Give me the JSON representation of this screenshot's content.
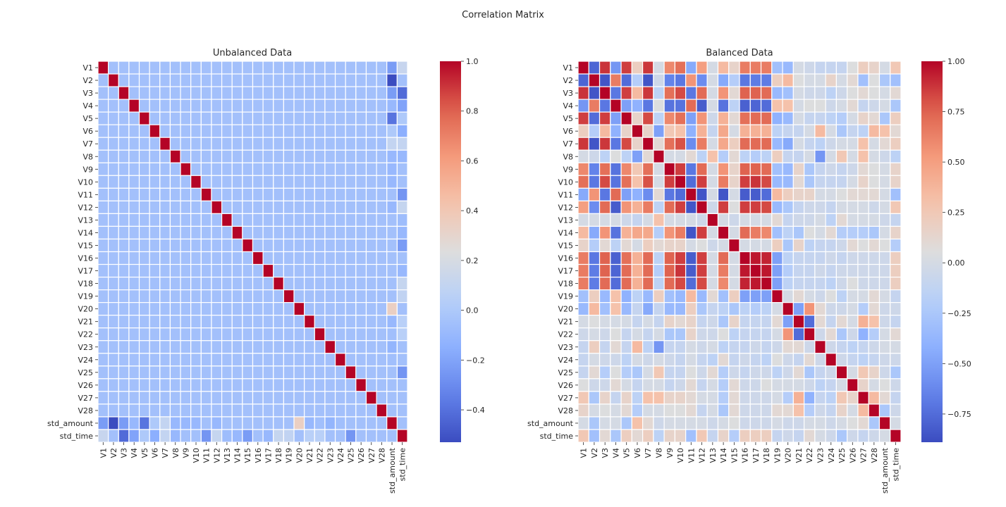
{
  "suptitle": "Correlation Matrix",
  "chart_data": [
    {
      "type": "heatmap",
      "title": "Unbalanced Data",
      "colormap": "coolwarm",
      "vmin": -0.53,
      "vmax": 1.0,
      "colorbar_ticks": [
        -0.4,
        -0.2,
        0.0,
        0.2,
        0.4,
        0.6,
        0.8,
        1.0
      ],
      "colorbar_tick_labels": [
        "−0.4",
        "−0.2",
        "0.0",
        "0.2",
        "0.4",
        "0.6",
        "0.8",
        "1.0"
      ],
      "labels": [
        "V1",
        "V2",
        "V3",
        "V4",
        "V5",
        "V6",
        "V7",
        "V8",
        "V9",
        "V10",
        "V11",
        "V12",
        "V13",
        "V14",
        "V15",
        "V16",
        "V17",
        "V18",
        "V19",
        "V20",
        "V21",
        "V22",
        "V23",
        "V24",
        "V25",
        "V26",
        "V27",
        "V28",
        "std_amount",
        "std_time"
      ],
      "base_value": -0.05,
      "diagonal_value": 1.0,
      "last_two": {
        "std_amount": [
          -0.23,
          -0.53,
          -0.23,
          -0.1,
          -0.39,
          0.0,
          0.1,
          -0.1,
          -0.1,
          -0.1,
          -0.05,
          -0.1,
          -0.05,
          -0.05,
          -0.05,
          -0.05,
          -0.05,
          -0.05,
          -0.05,
          0.34,
          -0.1,
          -0.06,
          -0.12,
          -0.06,
          -0.05,
          -0.05,
          -0.05,
          -0.05,
          1.0,
          -0.05
        ],
        "std_time": [
          0.12,
          -0.05,
          -0.42,
          -0.2,
          0.0,
          -0.15,
          0.1,
          -0.1,
          -0.05,
          -0.05,
          -0.26,
          0.11,
          -0.07,
          -0.1,
          -0.23,
          -0.05,
          -0.1,
          0.11,
          0.09,
          -0.05,
          0.05,
          0.05,
          -0.05,
          -0.05,
          -0.26,
          -0.05,
          -0.05,
          -0.05,
          -0.05,
          1.0
        ]
      }
    },
    {
      "type": "heatmap",
      "title": "Balanced Data",
      "colormap": "coolwarm",
      "vmin": -0.89,
      "vmax": 1.0,
      "colorbar_ticks": [
        -0.75,
        -0.5,
        -0.25,
        0.0,
        0.25,
        0.5,
        0.75,
        1.0
      ],
      "colorbar_tick_labels": [
        "−0.75",
        "−0.50",
        "−0.25",
        "0.00",
        "0.25",
        "0.50",
        "0.75",
        "1.00"
      ],
      "labels": [
        "V1",
        "V2",
        "V3",
        "V4",
        "V5",
        "V6",
        "V7",
        "V8",
        "V9",
        "V10",
        "V11",
        "V12",
        "V13",
        "V14",
        "V15",
        "V16",
        "V17",
        "V18",
        "V19",
        "V20",
        "V21",
        "V22",
        "V23",
        "V24",
        "V25",
        "V26",
        "V27",
        "V28",
        "std_amount",
        "std_time"
      ],
      "values": [
        [
          1.0,
          -0.78,
          0.88,
          -0.55,
          0.85,
          0.2,
          0.87,
          0.0,
          0.6,
          0.7,
          -0.45,
          0.5,
          0.0,
          0.35,
          0.15,
          0.65,
          0.65,
          0.65,
          -0.3,
          -0.35,
          0.0,
          -0.05,
          -0.1,
          -0.1,
          -0.1,
          0.05,
          0.2,
          0.15,
          0.0,
          0.25
        ],
        [
          -0.78,
          1.0,
          -0.85,
          0.65,
          -0.75,
          -0.2,
          -0.85,
          -0.05,
          -0.65,
          -0.7,
          0.55,
          -0.6,
          0.0,
          -0.45,
          -0.2,
          -0.7,
          -0.68,
          -0.68,
          0.2,
          0.35,
          0.05,
          0.0,
          0.0,
          0.15,
          0.0,
          0.1,
          -0.3,
          0.05,
          -0.25,
          -0.3
        ],
        [
          0.88,
          -0.85,
          1.0,
          -0.7,
          0.85,
          0.35,
          0.87,
          -0.15,
          0.7,
          0.82,
          -0.7,
          0.72,
          0.0,
          0.55,
          0.1,
          0.75,
          0.75,
          0.72,
          -0.35,
          -0.3,
          0.0,
          -0.05,
          -0.05,
          -0.15,
          -0.05,
          0.05,
          0.1,
          0.05,
          0.0,
          0.1
        ],
        [
          -0.55,
          0.65,
          -0.7,
          1.0,
          -0.5,
          -0.4,
          -0.7,
          0.05,
          -0.72,
          -0.72,
          0.72,
          -0.82,
          0.0,
          -0.72,
          -0.15,
          -0.8,
          -0.78,
          -0.75,
          0.3,
          0.3,
          0.0,
          0.05,
          0.05,
          -0.05,
          0.0,
          0.1,
          -0.1,
          -0.05,
          0.0,
          -0.25
        ],
        [
          0.85,
          -0.75,
          0.85,
          -0.5,
          1.0,
          0.15,
          0.82,
          -0.15,
          0.6,
          0.7,
          -0.5,
          0.55,
          -0.05,
          0.4,
          0.1,
          0.7,
          0.72,
          0.72,
          -0.4,
          -0.35,
          0.0,
          -0.1,
          -0.1,
          -0.15,
          -0.2,
          0.0,
          0.15,
          0.1,
          -0.25,
          0.2
        ],
        [
          0.2,
          -0.2,
          0.35,
          -0.4,
          0.15,
          1.0,
          0.15,
          -0.5,
          0.25,
          0.3,
          -0.4,
          0.4,
          -0.1,
          0.45,
          0.0,
          0.4,
          0.4,
          0.4,
          -0.15,
          -0.1,
          -0.1,
          0.0,
          0.35,
          0.0,
          -0.25,
          -0.1,
          -0.15,
          0.35,
          0.3,
          0.1
        ],
        [
          0.87,
          -0.85,
          0.87,
          -0.7,
          0.82,
          0.15,
          1.0,
          0.1,
          0.7,
          0.8,
          -0.6,
          0.65,
          0.0,
          0.45,
          0.2,
          0.72,
          0.72,
          0.72,
          -0.35,
          -0.45,
          0.0,
          -0.1,
          -0.15,
          -0.05,
          0.0,
          0.0,
          0.3,
          0.0,
          0.1,
          0.2
        ],
        [
          0.0,
          -0.05,
          -0.15,
          0.05,
          -0.15,
          -0.5,
          0.1,
          1.0,
          0.0,
          0.0,
          0.1,
          -0.15,
          0.3,
          -0.2,
          0.1,
          -0.15,
          -0.2,
          -0.15,
          0.2,
          -0.1,
          -0.1,
          0.0,
          -0.55,
          0.0,
          0.25,
          0.0,
          0.3,
          0.0,
          -0.05,
          -0.15
        ],
        [
          0.6,
          -0.65,
          0.7,
          -0.72,
          0.6,
          0.25,
          0.7,
          0.0,
          1.0,
          0.85,
          -0.7,
          0.72,
          0.0,
          0.55,
          0.15,
          0.75,
          0.75,
          0.72,
          -0.3,
          -0.35,
          0.15,
          -0.25,
          -0.1,
          -0.05,
          -0.1,
          -0.05,
          0.1,
          0.05,
          0.0,
          0.15
        ],
        [
          0.7,
          -0.7,
          0.82,
          -0.72,
          0.7,
          0.3,
          0.8,
          0.0,
          0.85,
          1.0,
          -0.75,
          0.85,
          0.0,
          0.65,
          0.15,
          0.85,
          0.88,
          0.82,
          -0.35,
          -0.35,
          0.1,
          -0.25,
          -0.1,
          -0.1,
          -0.1,
          0.0,
          0.15,
          0.05,
          0.0,
          0.15
        ],
        [
          -0.45,
          0.55,
          -0.7,
          0.72,
          -0.5,
          -0.4,
          -0.6,
          0.1,
          -0.7,
          -0.75,
          1.0,
          -0.85,
          0.0,
          -0.85,
          0.0,
          -0.82,
          -0.82,
          -0.75,
          0.35,
          0.2,
          0.15,
          0.15,
          0.0,
          0.0,
          0.05,
          0.1,
          0.1,
          0.1,
          0.0,
          -0.3
        ],
        [
          0.5,
          -0.6,
          0.72,
          -0.82,
          0.55,
          0.4,
          0.65,
          -0.15,
          0.72,
          0.85,
          -0.85,
          1.0,
          -0.05,
          0.85,
          0.05,
          0.85,
          0.85,
          0.82,
          -0.35,
          -0.25,
          -0.1,
          -0.05,
          -0.05,
          -0.1,
          0.0,
          0.0,
          0.0,
          -0.05,
          0.0,
          0.25
        ],
        [
          0.0,
          0.0,
          0.0,
          0.0,
          -0.05,
          -0.1,
          0.0,
          0.3,
          0.0,
          0.0,
          0.0,
          -0.05,
          1.0,
          0.0,
          -0.05,
          0.0,
          0.0,
          0.0,
          0.1,
          -0.1,
          -0.05,
          -0.05,
          0.0,
          -0.15,
          0.1,
          0.0,
          0.0,
          0.0,
          -0.05,
          -0.1
        ],
        [
          0.35,
          -0.45,
          0.55,
          -0.72,
          0.4,
          0.45,
          0.45,
          -0.2,
          0.55,
          0.65,
          -0.85,
          0.85,
          0.0,
          1.0,
          0.0,
          0.72,
          0.65,
          0.6,
          -0.3,
          -0.15,
          -0.25,
          0.05,
          0.0,
          0.1,
          -0.2,
          -0.2,
          -0.2,
          -0.25,
          0.0,
          0.15
        ],
        [
          0.15,
          -0.2,
          0.1,
          -0.15,
          0.1,
          0.0,
          0.2,
          0.1,
          0.15,
          0.15,
          0.0,
          0.05,
          -0.05,
          0.0,
          1.0,
          0.0,
          0.0,
          0.0,
          0.2,
          -0.25,
          0.15,
          -0.15,
          -0.1,
          -0.1,
          -0.05,
          0.1,
          0.05,
          0.1,
          0.05,
          -0.2
        ],
        [
          0.65,
          -0.7,
          0.75,
          -0.8,
          0.7,
          0.4,
          0.72,
          -0.15,
          0.75,
          0.85,
          -0.82,
          0.85,
          0.0,
          0.72,
          0.0,
          1.0,
          0.95,
          0.92,
          -0.5,
          -0.15,
          -0.1,
          -0.1,
          -0.1,
          -0.05,
          -0.1,
          -0.05,
          -0.05,
          -0.05,
          -0.05,
          0.2
        ],
        [
          0.65,
          -0.68,
          0.75,
          -0.78,
          0.72,
          0.4,
          0.72,
          -0.2,
          0.75,
          0.88,
          -0.82,
          0.85,
          0.0,
          0.65,
          0.0,
          0.95,
          1.0,
          0.95,
          -0.5,
          -0.2,
          -0.1,
          -0.1,
          -0.05,
          -0.1,
          -0.05,
          -0.05,
          -0.05,
          -0.05,
          -0.05,
          0.2
        ],
        [
          0.65,
          -0.68,
          0.72,
          -0.75,
          0.72,
          0.4,
          0.72,
          -0.15,
          0.72,
          0.82,
          -0.75,
          0.82,
          0.0,
          0.6,
          0.0,
          0.92,
          0.95,
          1.0,
          -0.5,
          -0.15,
          -0.1,
          -0.1,
          -0.1,
          -0.15,
          -0.05,
          0.05,
          -0.05,
          -0.05,
          -0.05,
          0.2
        ],
        [
          -0.3,
          0.2,
          -0.35,
          0.3,
          -0.4,
          -0.15,
          -0.35,
          0.2,
          -0.3,
          -0.35,
          0.35,
          -0.35,
          0.1,
          -0.3,
          0.2,
          -0.5,
          -0.5,
          -0.5,
          1.0,
          0.0,
          0.1,
          0.0,
          -0.05,
          0.05,
          -0.15,
          0.0,
          0.0,
          0.1,
          0.0,
          -0.1
        ],
        [
          -0.35,
          0.35,
          -0.3,
          0.3,
          -0.35,
          -0.1,
          -0.45,
          -0.1,
          -0.35,
          -0.35,
          0.2,
          -0.25,
          -0.1,
          -0.15,
          -0.25,
          -0.15,
          -0.2,
          -0.15,
          0.0,
          1.0,
          -0.5,
          0.55,
          0.1,
          -0.05,
          -0.05,
          0.0,
          -0.2,
          0.1,
          -0.05,
          -0.05
        ],
        [
          0.0,
          0.05,
          0.0,
          0.0,
          0.0,
          -0.1,
          0.0,
          -0.1,
          0.15,
          0.1,
          0.15,
          -0.1,
          -0.05,
          -0.25,
          0.15,
          -0.1,
          -0.1,
          -0.1,
          0.1,
          -0.5,
          1.0,
          -0.75,
          0.1,
          -0.1,
          0.1,
          0.0,
          0.4,
          0.3,
          -0.05,
          -0.1
        ],
        [
          -0.05,
          0.0,
          -0.05,
          0.05,
          -0.1,
          0.0,
          -0.1,
          0.0,
          -0.25,
          -0.25,
          0.15,
          -0.05,
          -0.05,
          0.05,
          -0.15,
          -0.1,
          -0.1,
          -0.1,
          0.0,
          0.55,
          -0.75,
          1.0,
          -0.05,
          0.1,
          -0.25,
          -0.05,
          -0.4,
          -0.2,
          0.0,
          0.1
        ],
        [
          -0.1,
          0.2,
          -0.1,
          0.1,
          -0.1,
          0.35,
          -0.15,
          -0.55,
          -0.1,
          -0.1,
          0.0,
          -0.05,
          0.0,
          -0.15,
          -0.1,
          -0.1,
          -0.05,
          -0.1,
          -0.05,
          0.1,
          0.1,
          -0.05,
          1.0,
          -0.05,
          -0.1,
          -0.15,
          -0.1,
          -0.05,
          0.0,
          0.0
        ],
        [
          -0.1,
          0.0,
          -0.05,
          -0.05,
          -0.15,
          0.0,
          -0.05,
          0.0,
          -0.05,
          -0.1,
          0.0,
          -0.1,
          -0.15,
          0.1,
          -0.1,
          -0.05,
          -0.1,
          -0.15,
          0.05,
          -0.05,
          -0.1,
          0.1,
          -0.05,
          1.0,
          -0.05,
          -0.1,
          -0.15,
          -0.1,
          -0.05,
          -0.05
        ],
        [
          -0.1,
          0.1,
          -0.2,
          0.05,
          -0.2,
          -0.25,
          0.0,
          0.25,
          -0.1,
          -0.1,
          0.05,
          -0.05,
          0.1,
          -0.2,
          -0.05,
          -0.1,
          -0.05,
          -0.05,
          -0.15,
          -0.05,
          0.1,
          -0.25,
          -0.1,
          -0.05,
          1.0,
          0.0,
          0.25,
          0.15,
          -0.05,
          -0.25
        ],
        [
          0.05,
          -0.05,
          -0.05,
          0.1,
          0.0,
          -0.1,
          0.0,
          0.0,
          -0.1,
          -0.05,
          0.1,
          -0.1,
          0.0,
          -0.2,
          0.1,
          -0.05,
          -0.05,
          0.05,
          0.0,
          0.0,
          0.0,
          -0.05,
          -0.15,
          -0.1,
          0.0,
          1.0,
          0.15,
          0.0,
          0.05,
          -0.05
        ],
        [
          0.25,
          -0.25,
          0.15,
          -0.1,
          0.15,
          -0.15,
          0.3,
          0.3,
          0.15,
          0.15,
          0.1,
          0.0,
          0.0,
          -0.2,
          0.1,
          -0.05,
          -0.05,
          -0.05,
          0.0,
          -0.2,
          0.4,
          -0.4,
          -0.1,
          -0.15,
          0.25,
          0.15,
          1.0,
          0.35,
          0.1,
          -0.1
        ],
        [
          0.15,
          0.0,
          0.05,
          0.0,
          0.1,
          -0.2,
          0.0,
          0.0,
          0.05,
          0.05,
          0.1,
          -0.1,
          0.0,
          -0.25,
          0.1,
          -0.05,
          -0.05,
          -0.05,
          0.1,
          0.1,
          0.3,
          -0.2,
          -0.05,
          -0.1,
          0.15,
          0.0,
          0.35,
          1.0,
          -0.25,
          -0.05
        ],
        [
          0.0,
          -0.25,
          0.0,
          0.0,
          -0.25,
          0.3,
          0.1,
          -0.05,
          0.0,
          0.0,
          0.0,
          0.0,
          -0.05,
          0.0,
          0.05,
          -0.05,
          -0.05,
          -0.05,
          0.0,
          -0.05,
          -0.05,
          0.0,
          0.0,
          -0.05,
          0.0,
          0.05,
          0.1,
          -0.25,
          1.0,
          0.0
        ],
        [
          0.25,
          -0.3,
          0.1,
          -0.25,
          0.2,
          0.1,
          0.2,
          -0.15,
          0.15,
          0.15,
          -0.3,
          0.25,
          -0.1,
          0.15,
          -0.2,
          0.2,
          0.2,
          0.2,
          -0.1,
          -0.05,
          -0.1,
          0.1,
          0.0,
          -0.05,
          -0.25,
          -0.05,
          -0.1,
          -0.05,
          0.0,
          1.0
        ]
      ]
    }
  ]
}
